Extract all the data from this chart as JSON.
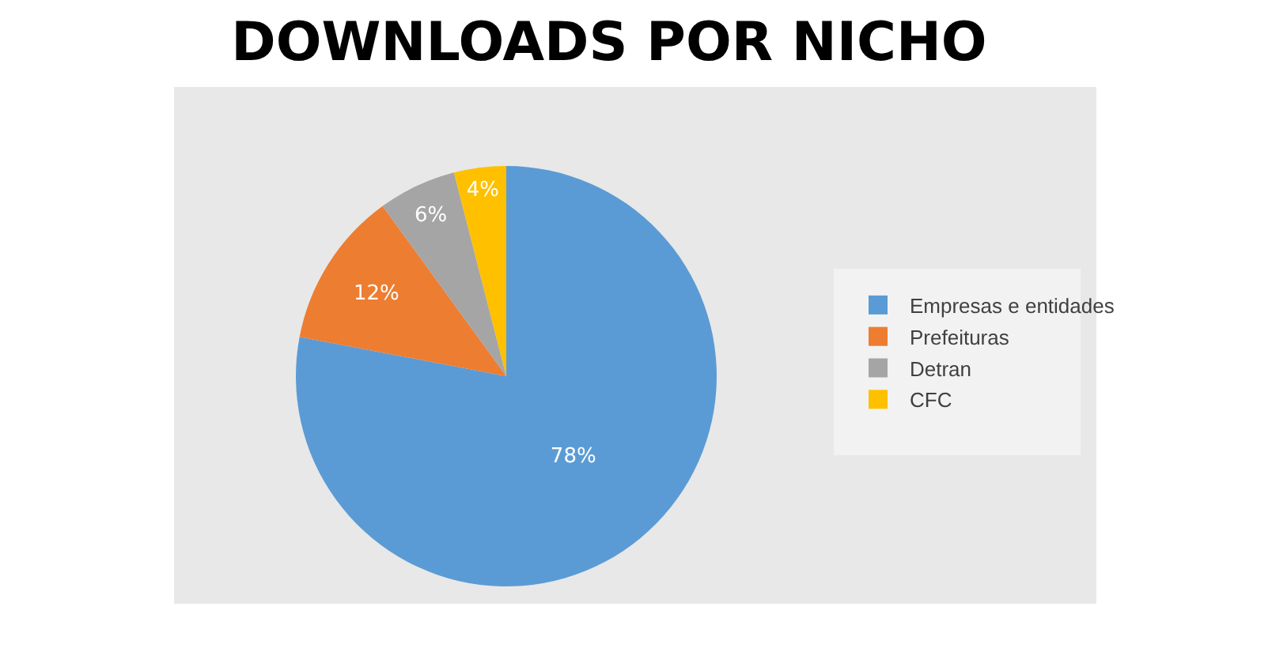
{
  "chart_data": {
    "type": "pie",
    "title": "DOWNLOADS POR NICHO",
    "categories": [
      "Empresas e entidades",
      "Prefeituras",
      "Detran",
      "CFC"
    ],
    "values": [
      78,
      12,
      6,
      4
    ],
    "colors": [
      "#5b9bd5",
      "#ed7d31",
      "#a5a5a5",
      "#ffc000"
    ],
    "value_labels": [
      "78%",
      "12%",
      "6%",
      "4%"
    ],
    "legend": "right"
  }
}
